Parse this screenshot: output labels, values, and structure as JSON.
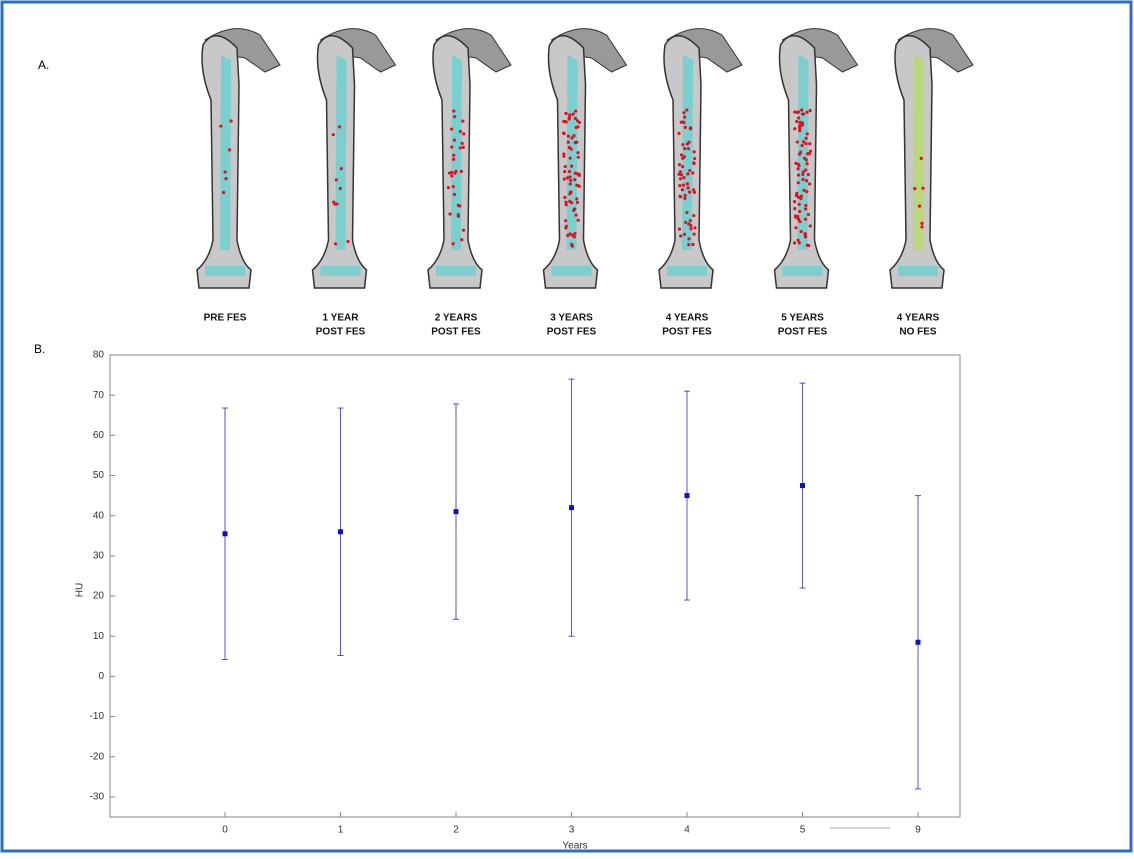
{
  "panel_a": {
    "label": "A.",
    "images": [
      [
        "PRE FES"
      ],
      [
        "1 YEAR",
        "POST FES"
      ],
      [
        "2 YEARS",
        "POST FES"
      ],
      [
        "3 YEARS",
        "POST FES"
      ],
      [
        "4 YEARS",
        "POST FES"
      ],
      [
        "5 YEARS",
        "POST FES"
      ],
      [
        "4 YEARS",
        "NO FES"
      ]
    ]
  },
  "chart_data": {
    "type": "errorbar",
    "panel_label": "B.",
    "x_label": "Years",
    "y_label": "HU",
    "categories": [
      "0",
      "1",
      "2",
      "3",
      "4",
      "5",
      "9"
    ],
    "series": [
      {
        "color": "#1010c0",
        "values": [
          35.5,
          36,
          41,
          42,
          45,
          47.5,
          8.5
        ],
        "errors": [
          31.3,
          30.8,
          26.8,
          32,
          26,
          25.5,
          36.5
        ]
      }
    ],
    "ylim": [
      -35,
      80
    ],
    "yticks": [
      -30,
      -20,
      -10,
      0,
      10,
      20,
      30,
      40,
      50,
      60,
      70,
      80
    ],
    "grid": false
  }
}
